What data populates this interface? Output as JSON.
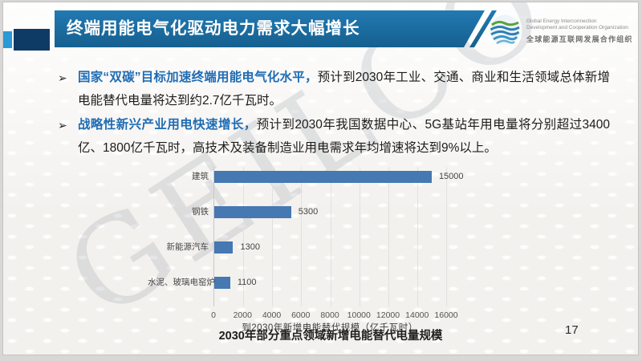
{
  "slide": {
    "title": "终端用能电气化驱动电力需求大幅增长",
    "caption": "2030年部分重点领域新增电能替代电量规模",
    "page_number": "17",
    "watermark": "GEILCO"
  },
  "logo": {
    "en_line1": "Global Energy Interconnection",
    "en_line2": "Development and Cooperation Organization",
    "cn_name": "全球能源互联网发展合作组织"
  },
  "ui": {
    "bullet_marker": "➢"
  },
  "bullets": [
    {
      "lead": "国家“双碳”目标加速终端用能电气化水平，",
      "rest": "预计到2030年工业、交通、商业和生活领域总体新增电能替代电量将达到约2.7亿千瓦时。"
    },
    {
      "lead": "战略性新兴产业用电快速增长，",
      "rest": "预计到2030年我国数据中心、5G基站年用电量将分别超过3400亿、1800亿千瓦时，高技术及装备制造业用电需求年均增速将达到9%以上。"
    }
  ],
  "chart_data": {
    "type": "bar",
    "orientation": "horizontal",
    "categories": [
      "建筑",
      "钢铁",
      "新能源汽车",
      "水泥、玻璃电窑炉"
    ],
    "values": [
      15000,
      5300,
      1300,
      1100
    ],
    "data_labels": [
      "15000",
      "5300",
      "1300",
      "1100"
    ],
    "xlabel": "到2030年新增电能替代规模（亿千瓦时）",
    "xlim": [
      0,
      16000
    ],
    "xticks": [
      0,
      2000,
      4000,
      6000,
      8000,
      10000,
      12000,
      14000,
      16000
    ],
    "grid": true,
    "legend": false,
    "bar_color": "#4678b2"
  },
  "colors": {
    "header_blue_top": "#2279b2",
    "header_blue_bottom": "#15608f",
    "deco_navy": "#0e3a66",
    "deco_light_blue": "#2a99d5",
    "lead_text_blue": "#1e6cb4",
    "bar_blue": "#4678b2"
  }
}
